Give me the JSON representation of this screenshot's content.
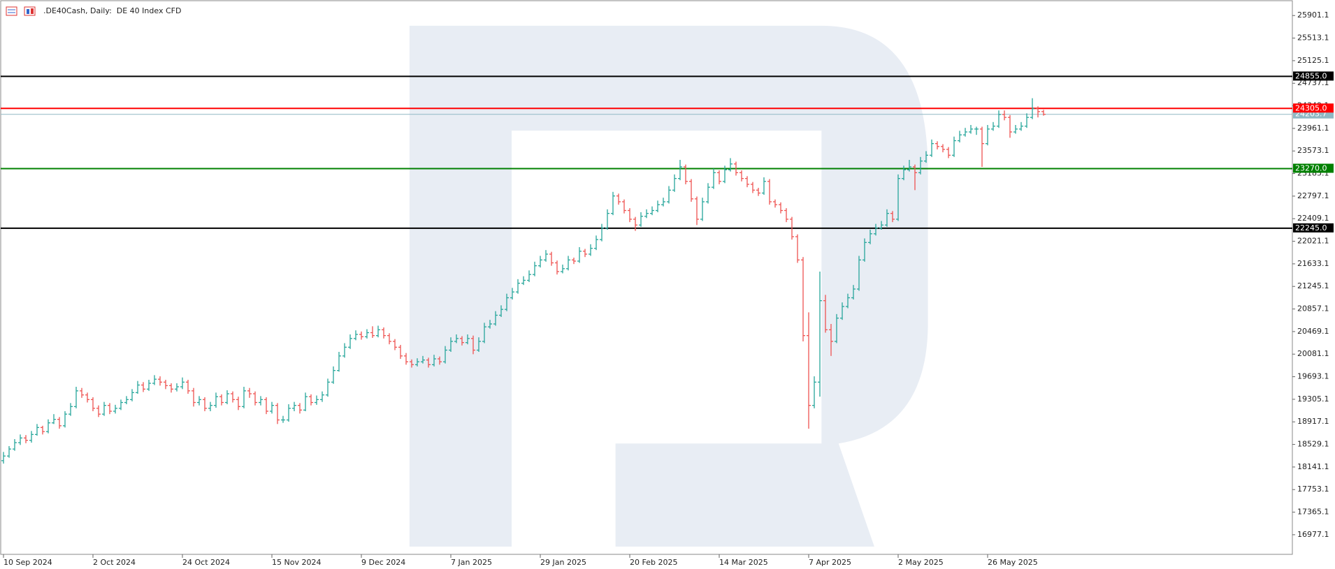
{
  "chart_data": {
    "type": "ohlc",
    "title": ".DE40Cash, Daily:  DE 40 Index CFD",
    "up_color": "#26a69a",
    "down_color": "#ef5350",
    "ylim": [
      16640,
      26120
    ],
    "yticks": [
      25901.1,
      25513.1,
      25125.1,
      24737.1,
      24349.1,
      23961.1,
      23573.1,
      23185.1,
      22797.1,
      22409.1,
      22021.1,
      21633.1,
      21245.1,
      20857.1,
      20469.1,
      20081.1,
      19693.1,
      19305.1,
      18917.1,
      18529.1,
      18141.1,
      17753.1,
      17365.1,
      16977.1
    ],
    "levels": [
      {
        "value": 24855,
        "label": "24855.0",
        "color": "#000000"
      },
      {
        "value": 24305,
        "label": "24305.0",
        "color": "#ff0000"
      },
      {
        "value": 23270,
        "label": "23270.0",
        "color": "#008000"
      },
      {
        "value": 22245,
        "label": "22245.0",
        "color": "#000000"
      }
    ],
    "current_price": 24203.7,
    "current_color": "#8fb8c4",
    "categories": [
      "10 Sep 2024",
      null,
      null,
      null,
      null,
      null,
      null,
      null,
      null,
      null,
      null,
      null,
      null,
      null,
      null,
      null,
      "2 Oct 2024",
      null,
      null,
      null,
      null,
      null,
      null,
      null,
      null,
      null,
      null,
      null,
      null,
      null,
      null,
      null,
      "24 Oct 2024",
      null,
      null,
      null,
      null,
      null,
      null,
      null,
      null,
      null,
      null,
      null,
      null,
      null,
      null,
      null,
      "15 Nov 2024",
      null,
      null,
      null,
      null,
      null,
      null,
      null,
      null,
      null,
      null,
      null,
      null,
      null,
      null,
      null,
      "9 Dec 2024",
      null,
      null,
      null,
      null,
      null,
      null,
      null,
      null,
      null,
      null,
      null,
      null,
      null,
      null,
      null,
      "7 Jan 2025",
      null,
      null,
      null,
      null,
      null,
      null,
      null,
      null,
      null,
      null,
      null,
      null,
      null,
      null,
      null,
      "29 Jan 2025",
      null,
      null,
      null,
      null,
      null,
      null,
      null,
      null,
      null,
      null,
      null,
      null,
      null,
      null,
      null,
      "20 Feb 2025",
      null,
      null,
      null,
      null,
      null,
      null,
      null,
      null,
      null,
      null,
      null,
      null,
      null,
      null,
      null,
      "14 Mar 2025",
      null,
      null,
      null,
      null,
      null,
      null,
      null,
      null,
      null,
      null,
      null,
      null,
      null,
      null,
      null,
      "7 Apr 2025",
      null,
      null,
      null,
      null,
      null,
      null,
      null,
      null,
      null,
      null,
      null,
      null,
      null,
      null,
      null,
      "2 May 2025",
      null,
      null,
      null,
      null,
      null,
      null,
      null,
      null,
      null,
      null,
      null,
      null,
      null,
      null,
      null,
      "26 May 2025",
      null,
      null,
      null,
      null,
      null,
      null,
      null,
      null,
      null,
      null
    ],
    "bars": [
      [
        18250,
        18400,
        18200,
        18330
      ],
      [
        18330,
        18500,
        18300,
        18450
      ],
      [
        18450,
        18620,
        18420,
        18560
      ],
      [
        18560,
        18700,
        18520,
        18640
      ],
      [
        18640,
        18690,
        18550,
        18600
      ],
      [
        18600,
        18760,
        18560,
        18700
      ],
      [
        18700,
        18880,
        18680,
        18820
      ],
      [
        18820,
        18850,
        18700,
        18750
      ],
      [
        18750,
        18960,
        18720,
        18900
      ],
      [
        18900,
        19050,
        18880,
        18960
      ],
      [
        18960,
        19000,
        18800,
        18850
      ],
      [
        18850,
        19100,
        18820,
        19050
      ],
      [
        19050,
        19240,
        19020,
        19180
      ],
      [
        19180,
        19520,
        19150,
        19450
      ],
      [
        19450,
        19500,
        19330,
        19380
      ],
      [
        19380,
        19420,
        19250,
        19300
      ],
      [
        19300,
        19340,
        19100,
        19150
      ],
      [
        19150,
        19200,
        19000,
        19050
      ],
      [
        19050,
        19260,
        19020,
        19200
      ],
      [
        19200,
        19240,
        19050,
        19100
      ],
      [
        19100,
        19210,
        19060,
        19150
      ],
      [
        19150,
        19300,
        19120,
        19250
      ],
      [
        19250,
        19360,
        19220,
        19300
      ],
      [
        19300,
        19480,
        19270,
        19420
      ],
      [
        19420,
        19620,
        19400,
        19550
      ],
      [
        19550,
        19600,
        19430,
        19480
      ],
      [
        19480,
        19640,
        19450,
        19580
      ],
      [
        19580,
        19720,
        19550,
        19650
      ],
      [
        19650,
        19700,
        19540,
        19600
      ],
      [
        19600,
        19640,
        19480,
        19540
      ],
      [
        19540,
        19580,
        19420,
        19480
      ],
      [
        19480,
        19580,
        19440,
        19520
      ],
      [
        19520,
        19680,
        19480,
        19600
      ],
      [
        19600,
        19640,
        19400,
        19450
      ],
      [
        19450,
        19500,
        19180,
        19250
      ],
      [
        19250,
        19360,
        19200,
        19300
      ],
      [
        19300,
        19340,
        19100,
        19150
      ],
      [
        19150,
        19260,
        19100,
        19200
      ],
      [
        19200,
        19420,
        19160,
        19350
      ],
      [
        19350,
        19390,
        19200,
        19250
      ],
      [
        19250,
        19460,
        19220,
        19400
      ],
      [
        19400,
        19440,
        19250,
        19300
      ],
      [
        19300,
        19350,
        19120,
        19180
      ],
      [
        19180,
        19520,
        19150,
        19450
      ],
      [
        19450,
        19500,
        19330,
        19400
      ],
      [
        19400,
        19440,
        19200,
        19250
      ],
      [
        19250,
        19360,
        19200,
        19300
      ],
      [
        19300,
        19340,
        19050,
        19100
      ],
      [
        19100,
        19260,
        19060,
        19200
      ],
      [
        19200,
        19240,
        18880,
        18950
      ],
      [
        18950,
        19020,
        18900,
        18950
      ],
      [
        18950,
        19220,
        18920,
        19150
      ],
      [
        19150,
        19260,
        19100,
        19200
      ],
      [
        19200,
        19240,
        19060,
        19120
      ],
      [
        19120,
        19420,
        19100,
        19350
      ],
      [
        19350,
        19390,
        19200,
        19250
      ],
      [
        19250,
        19370,
        19210,
        19300
      ],
      [
        19300,
        19440,
        19260,
        19380
      ],
      [
        19380,
        19660,
        19350,
        19600
      ],
      [
        19600,
        19870,
        19570,
        19800
      ],
      [
        19800,
        20120,
        19780,
        20050
      ],
      [
        20050,
        20270,
        20020,
        20200
      ],
      [
        20200,
        20420,
        20170,
        20350
      ],
      [
        20350,
        20490,
        20320,
        20420
      ],
      [
        20420,
        20470,
        20330,
        20380
      ],
      [
        20380,
        20510,
        20350,
        20450
      ],
      [
        20450,
        20560,
        20360,
        20400
      ],
      [
        20400,
        20570,
        20370,
        20500
      ],
      [
        20500,
        20540,
        20350,
        20400
      ],
      [
        20400,
        20440,
        20250,
        20300
      ],
      [
        20300,
        20340,
        20150,
        20200
      ],
      [
        20200,
        20240,
        20000,
        20050
      ],
      [
        20050,
        20100,
        19900,
        19950
      ],
      [
        19950,
        19990,
        19850,
        19900
      ],
      [
        19900,
        20010,
        19870,
        19950
      ],
      [
        19950,
        20050,
        19920,
        19980
      ],
      [
        19980,
        20020,
        19850,
        19900
      ],
      [
        19900,
        20070,
        19870,
        20000
      ],
      [
        20000,
        20040,
        19900,
        19950
      ],
      [
        19950,
        20220,
        19920,
        20150
      ],
      [
        20150,
        20370,
        20120,
        20300
      ],
      [
        20300,
        20420,
        20270,
        20350
      ],
      [
        20350,
        20390,
        20230,
        20280
      ],
      [
        20280,
        20420,
        20250,
        20350
      ],
      [
        20350,
        20400,
        20080,
        20150
      ],
      [
        20150,
        20370,
        20120,
        20300
      ],
      [
        20300,
        20620,
        20270,
        20550
      ],
      [
        20550,
        20670,
        20520,
        20600
      ],
      [
        20600,
        20820,
        20570,
        20750
      ],
      [
        20750,
        20920,
        20720,
        20850
      ],
      [
        20850,
        21120,
        20820,
        21050
      ],
      [
        21050,
        21220,
        21020,
        21150
      ],
      [
        21150,
        21370,
        21120,
        21300
      ],
      [
        21300,
        21420,
        21270,
        21350
      ],
      [
        21350,
        21520,
        21320,
        21450
      ],
      [
        21450,
        21670,
        21420,
        21600
      ],
      [
        21600,
        21770,
        21570,
        21700
      ],
      [
        21700,
        21870,
        21670,
        21800
      ],
      [
        21800,
        21840,
        21600,
        21650
      ],
      [
        21650,
        21690,
        21450,
        21500
      ],
      [
        21500,
        21620,
        21470,
        21550
      ],
      [
        21550,
        21770,
        21520,
        21700
      ],
      [
        21700,
        21740,
        21630,
        21680
      ],
      [
        21680,
        21920,
        21650,
        21850
      ],
      [
        21850,
        21890,
        21750,
        21800
      ],
      [
        21800,
        21970,
        21770,
        21900
      ],
      [
        21900,
        22120,
        21870,
        22050
      ],
      [
        22050,
        22320,
        22020,
        22250
      ],
      [
        22250,
        22570,
        22220,
        22500
      ],
      [
        22500,
        22870,
        22470,
        22800
      ],
      [
        22800,
        22840,
        22650,
        22700
      ],
      [
        22700,
        22740,
        22500,
        22550
      ],
      [
        22550,
        22590,
        22350,
        22400
      ],
      [
        22400,
        22440,
        22200,
        22300
      ],
      [
        22300,
        22520,
        22270,
        22450
      ],
      [
        22450,
        22570,
        22420,
        22500
      ],
      [
        22500,
        22620,
        22470,
        22550
      ],
      [
        22550,
        22720,
        22520,
        22650
      ],
      [
        22650,
        22770,
        22620,
        22700
      ],
      [
        22700,
        22970,
        22670,
        22900
      ],
      [
        22900,
        23170,
        22870,
        23100
      ],
      [
        23100,
        23420,
        23070,
        23300
      ],
      [
        23300,
        23340,
        23000,
        23050
      ],
      [
        23050,
        23090,
        22700,
        22750
      ],
      [
        22750,
        22790,
        22300,
        22400
      ],
      [
        22400,
        22770,
        22370,
        22700
      ],
      [
        22700,
        23020,
        22670,
        22950
      ],
      [
        22950,
        23270,
        22920,
        23200
      ],
      [
        23200,
        23240,
        23000,
        23050
      ],
      [
        23050,
        23320,
        23020,
        23250
      ],
      [
        23250,
        23450,
        23220,
        23350
      ],
      [
        23350,
        23390,
        23150,
        23200
      ],
      [
        23200,
        23240,
        23050,
        23100
      ],
      [
        23100,
        23140,
        22950,
        23000
      ],
      [
        23000,
        23040,
        22850,
        22900
      ],
      [
        22900,
        22940,
        22800,
        22850
      ],
      [
        22850,
        23120,
        22820,
        23050
      ],
      [
        23050,
        23090,
        22650,
        22700
      ],
      [
        22700,
        22740,
        22600,
        22650
      ],
      [
        22650,
        22690,
        22500,
        22550
      ],
      [
        22550,
        22590,
        22350,
        22400
      ],
      [
        22400,
        22440,
        22050,
        22100
      ],
      [
        22100,
        22140,
        21650,
        21700
      ],
      [
        21700,
        21750,
        20300,
        20400
      ],
      [
        20400,
        20800,
        18800,
        19200
      ],
      [
        19200,
        19700,
        19150,
        19600
      ],
      [
        19600,
        21500,
        19350,
        21000
      ],
      [
        21000,
        21100,
        20450,
        20500
      ],
      [
        20500,
        20600,
        20050,
        20300
      ],
      [
        20300,
        20770,
        20270,
        20700
      ],
      [
        20700,
        20970,
        20670,
        20900
      ],
      [
        20900,
        21120,
        20870,
        21050
      ],
      [
        21050,
        21270,
        21020,
        21200
      ],
      [
        21200,
        21770,
        21170,
        21700
      ],
      [
        21700,
        22070,
        21670,
        22000
      ],
      [
        22000,
        22220,
        21970,
        22150
      ],
      [
        22150,
        22320,
        22120,
        22250
      ],
      [
        22250,
        22370,
        22220,
        22300
      ],
      [
        22300,
        22570,
        22270,
        22500
      ],
      [
        22500,
        22540,
        22350,
        22400
      ],
      [
        22400,
        23170,
        22370,
        23100
      ],
      [
        23100,
        23320,
        23070,
        23250
      ],
      [
        23250,
        23420,
        23220,
        23300
      ],
      [
        23300,
        23340,
        22900,
        23200
      ],
      [
        23200,
        23470,
        23170,
        23400
      ],
      [
        23400,
        23570,
        23370,
        23500
      ],
      [
        23500,
        23770,
        23470,
        23700
      ],
      [
        23700,
        23740,
        23600,
        23650
      ],
      [
        23650,
        23690,
        23550,
        23600
      ],
      [
        23600,
        23640,
        23450,
        23500
      ],
      [
        23500,
        23820,
        23470,
        23750
      ],
      [
        23750,
        23920,
        23720,
        23850
      ],
      [
        23850,
        23970,
        23820,
        23900
      ],
      [
        23900,
        24020,
        23870,
        23950
      ],
      [
        23950,
        23990,
        23850,
        23950
      ],
      [
        23950,
        23990,
        23300,
        23700
      ],
      [
        23700,
        24020,
        23670,
        23950
      ],
      [
        23950,
        24070,
        23920,
        24000
      ],
      [
        24000,
        24270,
        23970,
        24200
      ],
      [
        24200,
        24270,
        24100,
        24150
      ],
      [
        24150,
        24190,
        23800,
        23900
      ],
      [
        23900,
        24020,
        23870,
        23950
      ],
      [
        23950,
        24070,
        23920,
        24000
      ],
      [
        24000,
        24220,
        23970,
        24150
      ],
      [
        24150,
        24480,
        24120,
        24300
      ],
      [
        24300,
        24340,
        24150,
        24250
      ],
      [
        24250,
        24280,
        24180,
        24203.7
      ]
    ]
  }
}
